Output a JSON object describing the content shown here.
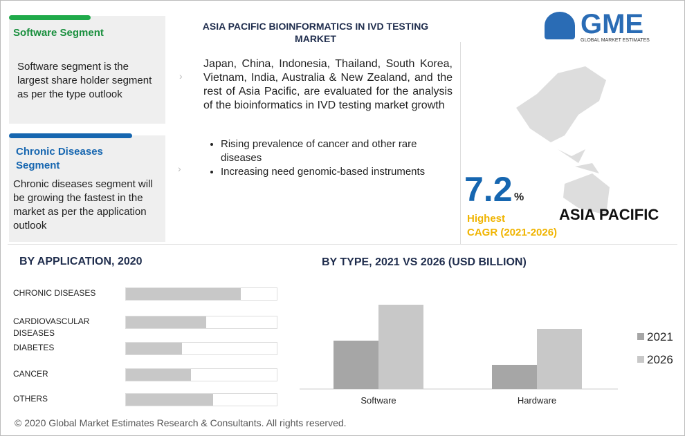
{
  "logo": {
    "name": "GME",
    "tagline": "GLOBAL MARKET ESTIMATES"
  },
  "header": {
    "title": "ASIA PACIFIC BIOINFORMATICS IN IVD TESTING MARKET"
  },
  "highlights": [
    {
      "title": "Software Segment",
      "text": "Software segment  is the largest share holder segment as per the type outlook"
    },
    {
      "title": "Chronic Diseases Segment",
      "text": "Chronic diseases segment will be growing the fastest in the market as per the application outlook"
    }
  ],
  "summary": {
    "text": "Japan, China, Indonesia, Thailand, South Korea, Vietnam, India, Australia & New Zealand, and the rest of Asia Pacific, are evaluated for the analysis of the bioinformatics in IVD testing market growth",
    "bullets": [
      "Rising prevalence of cancer and other rare diseases",
      "Increasing need genomic-based instruments"
    ]
  },
  "cagr": {
    "value": "7.2",
    "unit": "%",
    "label": "Highest",
    "sublabel": "CAGR (2021-2026)",
    "region": "ASIA PACIFIC"
  },
  "chart_data": [
    {
      "type": "hbar",
      "title": "BY APPLICATION, 2020",
      "categories": [
        "CHRONIC DISEASES",
        "CARDIOVASCULAR DISEASES",
        "DIABETES",
        "CANCER",
        "OTHERS"
      ],
      "values": [
        76,
        53,
        37,
        43,
        58
      ],
      "xlim": [
        0,
        100
      ],
      "color": "#c8c8c8"
    },
    {
      "type": "bar",
      "title": "BY TYPE, 2021 VS 2026 (USD BILLION)",
      "categories": [
        "Software",
        "Hardware"
      ],
      "series": [
        {
          "name": "2021",
          "color": "#a6a6a6",
          "values": [
            0.7,
            0.35
          ]
        },
        {
          "name": "2026",
          "color": "#c8c8c8",
          "values": [
            1.22,
            0.87
          ]
        }
      ],
      "ylim": [
        0,
        1.4
      ]
    }
  ],
  "footer": {
    "text": "© 2020 Global Market Estimates Research & Consultants. All rights reserved."
  }
}
